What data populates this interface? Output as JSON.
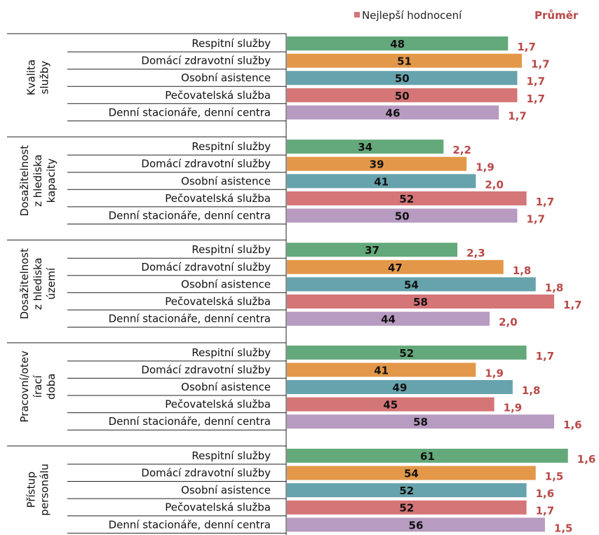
{
  "legend": {
    "best_label": "Nejlepší hodnocení",
    "avg_label": "Průměr"
  },
  "colors": {
    "Respitní služby": "#64a97b",
    "Domácí zdravotní služby": "#e39849",
    "Osobní asistence": "#67a3ad",
    "Pečovatelská služba": "#d47577",
    "Denní stacionáře, denní centra": "#b79bc1"
  },
  "chart_data": {
    "type": "bar",
    "orientation": "horizontal",
    "grid": false,
    "legend_position": "top-right",
    "series": [
      {
        "name": "Nejlepší hodnocení"
      },
      {
        "name": "Průměr"
      }
    ],
    "groups": [
      {
        "label": "Kvalita služby",
        "rows": [
          {
            "label": "Respitní služby",
            "value": 48,
            "avg": "1,7"
          },
          {
            "label": "Domácí zdravotní služby",
            "value": 51,
            "avg": "1,7"
          },
          {
            "label": "Osobní asistence",
            "value": 50,
            "avg": "1,7"
          },
          {
            "label": "Pečovatelská služba",
            "value": 50,
            "avg": "1,7"
          },
          {
            "label": "Denní stacionáře, denní centra",
            "value": 46,
            "avg": "1,7"
          }
        ]
      },
      {
        "label": "Dosažitelnost z hlediska kapacity",
        "rows": [
          {
            "label": "Respitní služby",
            "value": 34,
            "avg": "2,2"
          },
          {
            "label": "Domácí zdravotní služby",
            "value": 39,
            "avg": "1,9"
          },
          {
            "label": "Osobní asistence",
            "value": 41,
            "avg": "2,0"
          },
          {
            "label": "Pečovatelská služba",
            "value": 52,
            "avg": "1,7"
          },
          {
            "label": "Denní stacionáře, denní centra",
            "value": 50,
            "avg": "1,7"
          }
        ]
      },
      {
        "label": "Dosažitelnost z hlediska území",
        "rows": [
          {
            "label": "Respitní služby",
            "value": 37,
            "avg": "2,3"
          },
          {
            "label": "Domácí zdravotní služby",
            "value": 47,
            "avg": "1,8"
          },
          {
            "label": "Osobní asistence",
            "value": 54,
            "avg": "1,8"
          },
          {
            "label": "Pečovatelská služba",
            "value": 58,
            "avg": "1,7"
          },
          {
            "label": "Denní stacionáře, denní centra",
            "value": 44,
            "avg": "2,0"
          }
        ]
      },
      {
        "label": "Pracovní/otevírací doba",
        "rows": [
          {
            "label": "Respitní služby",
            "value": 52,
            "avg": "1,7"
          },
          {
            "label": "Domácí zdravotní služby",
            "value": 41,
            "avg": "1,9"
          },
          {
            "label": "Osobní asistence",
            "value": 49,
            "avg": "1,8"
          },
          {
            "label": "Pečovatelská služba",
            "value": 45,
            "avg": "1,9"
          },
          {
            "label": "Denní stacionáře, denní centra",
            "value": 58,
            "avg": "1,6"
          }
        ]
      },
      {
        "label": "Přístup personálu",
        "rows": [
          {
            "label": "Respitní služby",
            "value": 61,
            "avg": "1,6"
          },
          {
            "label": "Domácí zdravotní služby",
            "value": 54,
            "avg": "1,5"
          },
          {
            "label": "Osobní asistence",
            "value": 52,
            "avg": "1,6"
          },
          {
            "label": "Pečovatelská služba",
            "value": 52,
            "avg": "1,7"
          },
          {
            "label": "Denní stacionáře, denní centra",
            "value": 56,
            "avg": "1,5"
          }
        ]
      }
    ]
  }
}
